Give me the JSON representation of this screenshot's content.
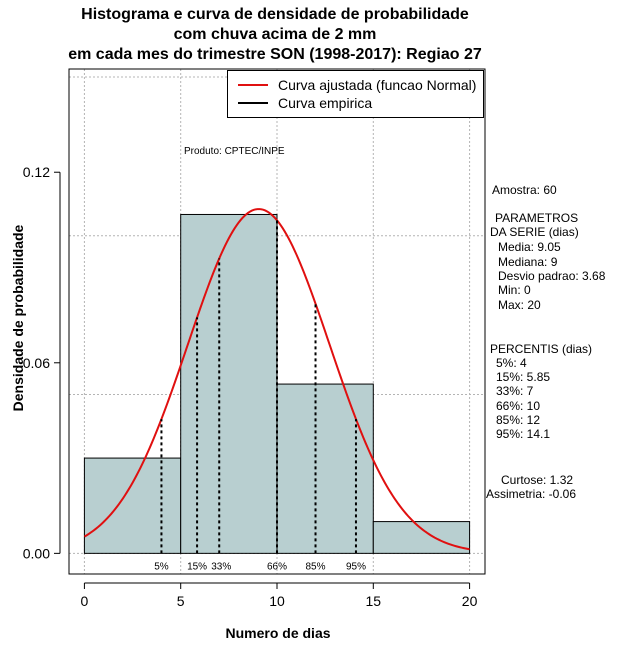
{
  "chart_data": {
    "type": "bar",
    "title_lines": [
      "Histograma e curva de densidade de probabilidade",
      "com chuva acima de 2 mm",
      "em cada mes do trimestre SON (1998-2017): Regiao 27"
    ],
    "xlabel": "Numero de dias",
    "ylabel": "Densidade de probabilidade",
    "xlim": [
      -0.8,
      20.8
    ],
    "ylim": [
      -0.0065,
      0.1525
    ],
    "x_ticks": [
      "0",
      "5",
      "10",
      "15",
      "20"
    ],
    "y_ticks": [
      "0.00",
      "0.06",
      "0.12"
    ],
    "bins": [
      {
        "from": 0,
        "to": 5,
        "density": 0.03
      },
      {
        "from": 5,
        "to": 10,
        "density": 0.1067
      },
      {
        "from": 10,
        "to": 15,
        "density": 0.0533
      },
      {
        "from": 15,
        "to": 20,
        "density": 0.01
      }
    ],
    "fitted_curve": {
      "name": "Curva ajustada (funcao Normal)",
      "mean": 9.05,
      "sd": 3.68,
      "color": "#e01010"
    },
    "empirical_curve": {
      "name": "Curva empirica",
      "color": "#000000"
    },
    "percentile_markers": [
      {
        "label": "5%",
        "x": 4
      },
      {
        "label": "15%",
        "x": 5.85
      },
      {
        "label": "33%",
        "x": 7
      },
      {
        "label": "66%",
        "x": 10
      },
      {
        "label": "85%",
        "x": 12
      },
      {
        "label": "95%",
        "x": 14.1
      }
    ],
    "bar_color": "#b8cfd0",
    "grid": true
  },
  "produto": "Produto: CPTEC/INPE",
  "stats": {
    "amostra": "Amostra: 60",
    "parametros_title_1": "PARAMETROS",
    "parametros_title_2": "DA SERIE (dias)",
    "media": "Media: 9.05",
    "mediana": "Mediana: 9",
    "desvio": "Desvio padrao: 3.68",
    "min": "Min: 0",
    "max": "Max: 20",
    "percentis_title": "PERCENTIS (dias)",
    "p5": "5%: 4",
    "p15": "15%: 5.85",
    "p33": "33%: 7",
    "p66": "66%: 10",
    "p85": "85%: 12",
    "p95": "95%: 14.1",
    "curtose": "Curtose: 1.32",
    "assimetria": "Assimetria: -0.06"
  }
}
